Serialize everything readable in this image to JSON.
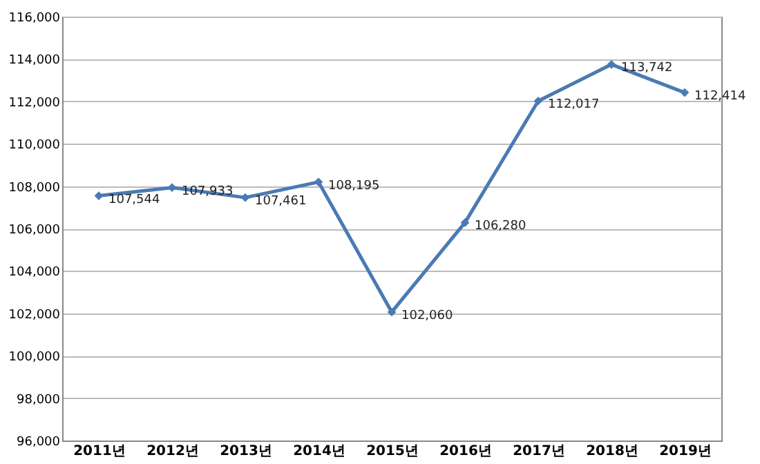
{
  "chart_data": {
    "type": "line",
    "categories": [
      "2011년",
      "2012년",
      "2013년",
      "2014년",
      "2015년",
      "2016년",
      "2017년",
      "2018년",
      "2019년"
    ],
    "series": [
      {
        "color": "#4a7ab4",
        "values": [
          107544,
          107933,
          107461,
          108195,
          102060,
          106280,
          112017,
          113742,
          112414
        ],
        "value_labels": [
          "107,544",
          "107,933",
          "107,461",
          "108,195",
          "102,060",
          "106,280",
          "112,017",
          "113,742",
          "112,414"
        ]
      }
    ],
    "ylim": [
      96000,
      116000
    ],
    "yticks": [
      {
        "value": 96000,
        "label": "96,000"
      },
      {
        "value": 98000,
        "label": "98,000"
      },
      {
        "value": 100000,
        "label": "100,000"
      },
      {
        "value": 102000,
        "label": "102,000"
      },
      {
        "value": 104000,
        "label": "104,000"
      },
      {
        "value": 106000,
        "label": "106,000"
      },
      {
        "value": 108000,
        "label": "108,000"
      },
      {
        "value": 110000,
        "label": "110,000"
      },
      {
        "value": 112000,
        "label": "112,000"
      },
      {
        "value": 114000,
        "label": "114,000"
      },
      {
        "value": 116000,
        "label": "116,000"
      }
    ],
    "grid": "y",
    "marker": "diamond",
    "line_style": "solid"
  }
}
